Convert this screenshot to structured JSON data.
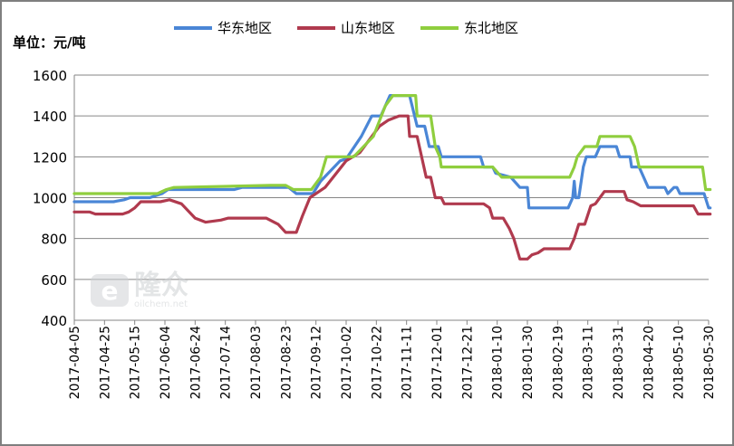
{
  "chart_data": {
    "type": "line",
    "title": "",
    "unit_label": "单位：元/吨",
    "xlabel": "",
    "ylabel": "",
    "ylim": [
      400,
      1600
    ],
    "yticks": [
      400,
      600,
      800,
      1000,
      1200,
      1400,
      1600
    ],
    "grid": "horizontal",
    "legend_position": "top",
    "x_tick_labels": [
      "2017-04-05",
      "2017-04-25",
      "2017-05-15",
      "2017-06-04",
      "2017-06-24",
      "2017-07-14",
      "2017-08-03",
      "2017-08-23",
      "2017-09-12",
      "2017-10-02",
      "2017-10-22",
      "2017-11-11",
      "2017-12-01",
      "2017-12-21",
      "2018-01-10",
      "2018-01-30",
      "2018-02-19",
      "2018-03-11",
      "2018-03-31",
      "2018-04-20",
      "2018-05-10",
      "2018-05-30"
    ],
    "series": [
      {
        "name": "华东地区",
        "color": "#4a86d6",
        "points": [
          [
            "2017-04-05",
            980
          ],
          [
            "2017-05-01",
            980
          ],
          [
            "2017-05-08",
            990
          ],
          [
            "2017-05-12",
            1000
          ],
          [
            "2017-05-25",
            1000
          ],
          [
            "2017-06-02",
            1020
          ],
          [
            "2017-06-06",
            1040
          ],
          [
            "2017-07-20",
            1040
          ],
          [
            "2017-07-25",
            1050
          ],
          [
            "2017-08-25",
            1050
          ],
          [
            "2017-08-30",
            1020
          ],
          [
            "2017-09-10",
            1020
          ],
          [
            "2017-09-15",
            1080
          ],
          [
            "2017-09-28",
            1180
          ],
          [
            "2017-10-02",
            1190
          ],
          [
            "2017-10-12",
            1300
          ],
          [
            "2017-10-19",
            1400
          ],
          [
            "2017-10-25",
            1400
          ],
          [
            "2017-10-31",
            1500
          ],
          [
            "2017-11-13",
            1500
          ],
          [
            "2017-11-18",
            1350
          ],
          [
            "2017-11-23",
            1350
          ],
          [
            "2017-11-26",
            1250
          ],
          [
            "2017-12-02",
            1250
          ],
          [
            "2017-12-04",
            1200
          ],
          [
            "2017-12-30",
            1200
          ],
          [
            "2018-01-01",
            1150
          ],
          [
            "2018-01-07",
            1150
          ],
          [
            "2018-01-09",
            1120
          ],
          [
            "2018-01-19",
            1100
          ],
          [
            "2018-01-25",
            1050
          ],
          [
            "2018-01-30",
            1050
          ],
          [
            "2018-01-31",
            950
          ],
          [
            "2018-02-26",
            950
          ],
          [
            "2018-03-01",
            1000
          ],
          [
            "2018-03-02",
            1080
          ],
          [
            "2018-03-03",
            1000
          ],
          [
            "2018-03-05",
            1000
          ],
          [
            "2018-03-08",
            1150
          ],
          [
            "2018-03-10",
            1200
          ],
          [
            "2018-03-16",
            1200
          ],
          [
            "2018-03-19",
            1250
          ],
          [
            "2018-03-30",
            1250
          ],
          [
            "2018-04-01",
            1200
          ],
          [
            "2018-04-08",
            1200
          ],
          [
            "2018-04-09",
            1150
          ],
          [
            "2018-04-14",
            1150
          ],
          [
            "2018-04-17",
            1100
          ],
          [
            "2018-04-20",
            1050
          ],
          [
            "2018-05-01",
            1050
          ],
          [
            "2018-05-03",
            1020
          ],
          [
            "2018-05-07",
            1050
          ],
          [
            "2018-05-09",
            1050
          ],
          [
            "2018-05-11",
            1020
          ],
          [
            "2018-05-27",
            1020
          ],
          [
            "2018-05-30",
            950
          ],
          [
            "2018-05-31",
            950
          ]
        ]
      },
      {
        "name": "山东地区",
        "color": "#b03a4e",
        "points": [
          [
            "2017-04-05",
            930
          ],
          [
            "2017-04-15",
            930
          ],
          [
            "2017-04-19",
            920
          ],
          [
            "2017-05-07",
            920
          ],
          [
            "2017-05-11",
            930
          ],
          [
            "2017-05-15",
            950
          ],
          [
            "2017-05-19",
            980
          ],
          [
            "2017-06-01",
            980
          ],
          [
            "2017-06-07",
            990
          ],
          [
            "2017-06-15",
            970
          ],
          [
            "2017-06-24",
            900
          ],
          [
            "2017-07-01",
            880
          ],
          [
            "2017-07-11",
            890
          ],
          [
            "2017-07-16",
            900
          ],
          [
            "2017-08-10",
            900
          ],
          [
            "2017-08-18",
            870
          ],
          [
            "2017-08-23",
            830
          ],
          [
            "2017-08-30",
            830
          ],
          [
            "2017-09-03",
            910
          ],
          [
            "2017-09-08",
            1000
          ],
          [
            "2017-09-18",
            1050
          ],
          [
            "2017-10-02",
            1180
          ],
          [
            "2017-10-11",
            1220
          ],
          [
            "2017-10-24",
            1350
          ],
          [
            "2017-10-30",
            1380
          ],
          [
            "2017-11-06",
            1400
          ],
          [
            "2017-11-12",
            1400
          ],
          [
            "2017-11-13",
            1300
          ],
          [
            "2017-11-18",
            1300
          ],
          [
            "2017-11-21",
            1200
          ],
          [
            "2017-11-24",
            1100
          ],
          [
            "2017-11-27",
            1100
          ],
          [
            "2017-11-30",
            1000
          ],
          [
            "2017-12-04",
            1000
          ],
          [
            "2017-12-06",
            970
          ],
          [
            "2018-01-01",
            970
          ],
          [
            "2018-01-05",
            950
          ],
          [
            "2018-01-07",
            900
          ],
          [
            "2018-01-14",
            900
          ],
          [
            "2018-01-18",
            850
          ],
          [
            "2018-01-21",
            800
          ],
          [
            "2018-01-25",
            700
          ],
          [
            "2018-01-30",
            700
          ],
          [
            "2018-02-02",
            720
          ],
          [
            "2018-02-06",
            730
          ],
          [
            "2018-02-10",
            750
          ],
          [
            "2018-02-27",
            750
          ],
          [
            "2018-03-02",
            800
          ],
          [
            "2018-03-05",
            870
          ],
          [
            "2018-03-09",
            870
          ],
          [
            "2018-03-13",
            960
          ],
          [
            "2018-03-16",
            970
          ],
          [
            "2018-03-19",
            1000
          ],
          [
            "2018-03-22",
            1030
          ],
          [
            "2018-04-04",
            1030
          ],
          [
            "2018-04-06",
            990
          ],
          [
            "2018-04-10",
            980
          ],
          [
            "2018-04-15",
            960
          ],
          [
            "2018-05-20",
            960
          ],
          [
            "2018-05-23",
            920
          ],
          [
            "2018-05-31",
            920
          ]
        ]
      },
      {
        "name": "东北地区",
        "color": "#8fce3e",
        "points": [
          [
            "2017-04-05",
            1020
          ],
          [
            "2017-05-30",
            1020
          ],
          [
            "2017-06-05",
            1040
          ],
          [
            "2017-06-10",
            1050
          ],
          [
            "2017-08-13",
            1060
          ],
          [
            "2017-08-23",
            1060
          ],
          [
            "2017-08-28",
            1040
          ],
          [
            "2017-09-09",
            1040
          ],
          [
            "2017-09-15",
            1100
          ],
          [
            "2017-09-19",
            1200
          ],
          [
            "2017-10-07",
            1200
          ],
          [
            "2017-10-20",
            1300
          ],
          [
            "2017-10-28",
            1450
          ],
          [
            "2017-11-02",
            1500
          ],
          [
            "2017-11-17",
            1500
          ],
          [
            "2017-11-18",
            1400
          ],
          [
            "2017-11-27",
            1400
          ],
          [
            "2017-11-30",
            1250
          ],
          [
            "2017-12-03",
            1200
          ],
          [
            "2017-12-04",
            1150
          ],
          [
            "2018-01-07",
            1150
          ],
          [
            "2018-01-13",
            1100
          ],
          [
            "2018-02-27",
            1100
          ],
          [
            "2018-03-02",
            1150
          ],
          [
            "2018-03-04",
            1200
          ],
          [
            "2018-03-09",
            1250
          ],
          [
            "2018-03-17",
            1250
          ],
          [
            "2018-03-19",
            1300
          ],
          [
            "2018-04-08",
            1300
          ],
          [
            "2018-04-11",
            1250
          ],
          [
            "2018-04-14",
            1150
          ],
          [
            "2018-05-26",
            1150
          ],
          [
            "2018-05-28",
            1040
          ],
          [
            "2018-05-31",
            1040
          ]
        ]
      }
    ]
  }
}
